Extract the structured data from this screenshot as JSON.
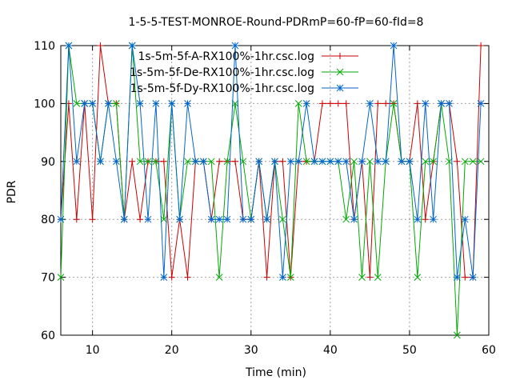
{
  "chart_data": {
    "type": "line",
    "title": "1-5-5-TEST-MONROE-Round-PDRmP=60-fP=60-fId=8",
    "xlabel": "Time (min)",
    "ylabel": "PDR",
    "xlim": [
      6,
      60
    ],
    "ylim": [
      60,
      110
    ],
    "x_ticks": [
      10,
      20,
      30,
      40,
      50,
      60
    ],
    "y_ticks": [
      60,
      70,
      80,
      90,
      100,
      110
    ],
    "grid": true,
    "legend_position": "top-right",
    "x": [
      6,
      7,
      8,
      9,
      10,
      11,
      12,
      13,
      14,
      15,
      16,
      17,
      18,
      19,
      20,
      21,
      22,
      23,
      24,
      25,
      26,
      27,
      28,
      29,
      30,
      31,
      32,
      33,
      34,
      35,
      36,
      37,
      38,
      39,
      40,
      41,
      42,
      43,
      44,
      45,
      46,
      47,
      48,
      49,
      50,
      51,
      52,
      53,
      54,
      55,
      56,
      57,
      58,
      59
    ],
    "series": [
      {
        "name": "1s-5m-5f-A-RX100%-1hr.csc.log",
        "color": "#cc0000",
        "marker": "plus",
        "values": [
          80,
          100,
          80,
          100,
          80,
          110,
          100,
          100,
          80,
          90,
          80,
          90,
          90,
          90,
          70,
          80,
          70,
          90,
          90,
          80,
          90,
          90,
          90,
          80,
          80,
          90,
          70,
          90,
          90,
          70,
          90,
          90,
          90,
          100,
          100,
          100,
          100,
          80,
          90,
          70,
          100,
          100,
          100,
          90,
          90,
          100,
          80,
          90,
          100,
          100,
          90,
          70,
          70,
          110
        ]
      },
      {
        "name": "1s-5m-5f-De-RX100%-1hr.csc.log",
        "color": "#00aa00",
        "marker": "x",
        "values": [
          70,
          110,
          100,
          100,
          100,
          90,
          100,
          100,
          80,
          110,
          90,
          90,
          90,
          80,
          100,
          80,
          90,
          90,
          90,
          90,
          70,
          90,
          100,
          90,
          80,
          90,
          80,
          90,
          80,
          70,
          100,
          90,
          90,
          90,
          90,
          90,
          80,
          90,
          70,
          90,
          70,
          90,
          100,
          90,
          90,
          70,
          90,
          90,
          100,
          90,
          60,
          90,
          90,
          90
        ]
      },
      {
        "name": "1s-5m-5f-Dy-RX100%-1hr.csc.log",
        "color": "#0066cc",
        "marker": "star",
        "values": [
          80,
          110,
          90,
          100,
          100,
          90,
          100,
          90,
          80,
          110,
          100,
          80,
          100,
          70,
          100,
          80,
          100,
          90,
          90,
          80,
          80,
          80,
          110,
          80,
          80,
          90,
          80,
          90,
          70,
          90,
          90,
          100,
          90,
          90,
          90,
          90,
          90,
          80,
          90,
          100,
          90,
          90,
          110,
          90,
          90,
          80,
          100,
          80,
          100,
          100,
          70,
          80,
          70,
          100
        ]
      }
    ]
  }
}
